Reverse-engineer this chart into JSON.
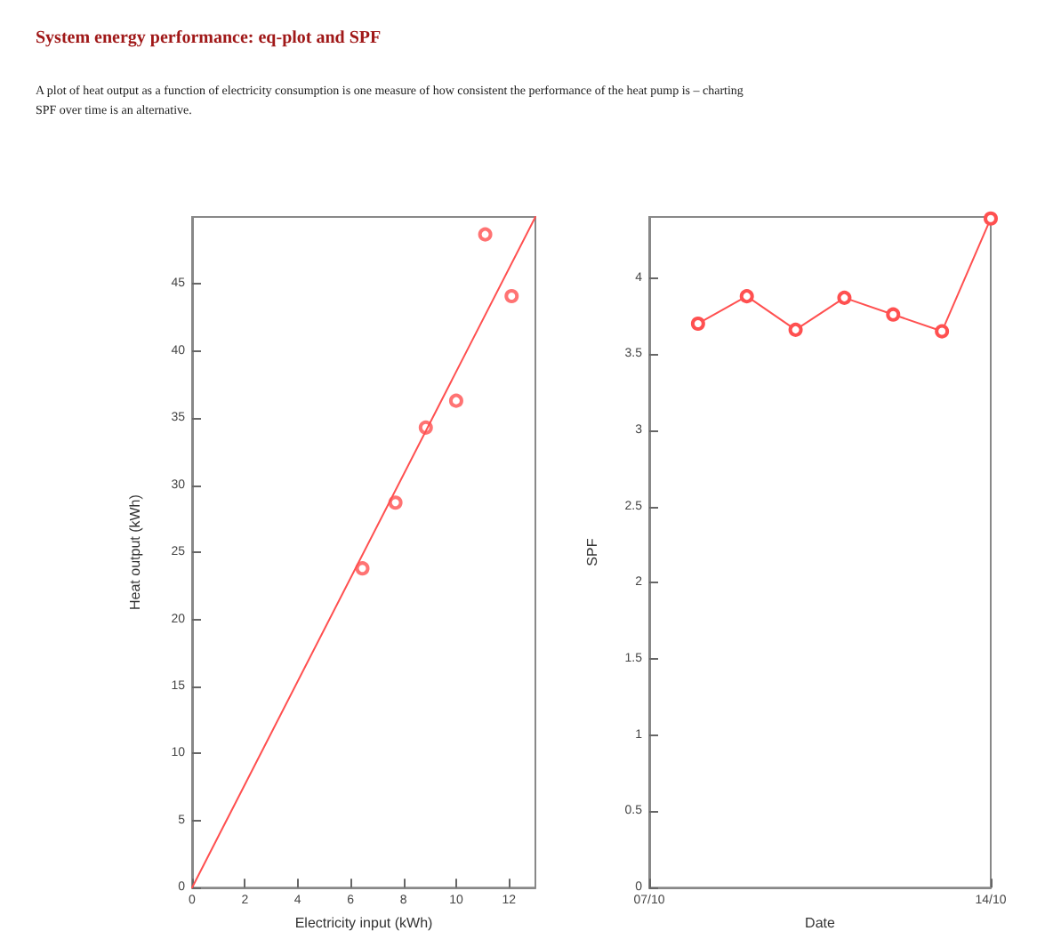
{
  "chart_data": [
    {
      "type": "scatter",
      "title": "System energy performance: eq-plot and SPF",
      "subtitle": "A plot of heat output as a function of electricity consumption is one measure of how consistent the performance of the heat pump is – charting SPF over time is an alternative.",
      "xlabel": "Electricity input (kWh)",
      "ylabel": "Heat output (kWh)",
      "xlim": [
        0,
        13
      ],
      "ylim": [
        0,
        50
      ],
      "xticks": [
        0,
        2,
        4,
        6,
        8,
        10,
        12
      ],
      "yticks": [
        0,
        5,
        10,
        15,
        20,
        25,
        30,
        35,
        40,
        45
      ],
      "grid": false,
      "series": [
        {
          "type": "scatter",
          "marker": "circle",
          "color": "#ff5050",
          "x": [
            6.45,
            7.7,
            8.85,
            10,
            11.1,
            12.1
          ],
          "values": [
            23.8,
            28.7,
            34.3,
            36.3,
            48.7,
            44.1
          ]
        },
        {
          "type": "line",
          "marker": "none",
          "color": "#ff5050",
          "x": [
            0,
            13
          ],
          "values": [
            0,
            50
          ]
        }
      ]
    },
    {
      "type": "line",
      "xlabel": "Date",
      "ylabel": "SPF",
      "xlim": [
        "--10-07",
        "--10-14"
      ],
      "ylim": [
        0,
        4.4
      ],
      "xticks": [
        {
          "value": "--10-07",
          "label": "07/10"
        },
        {
          "value": "--10-14",
          "label": "14/10"
        }
      ],
      "yticks": [
        0,
        0.5,
        1,
        1.5,
        2,
        2.5,
        3,
        3.5,
        4
      ],
      "grid": false,
      "marker": "circle",
      "series": [
        {
          "color": "#ff5050",
          "x": [
            "--10-08",
            "--10-09",
            "--10-10",
            "--10-11",
            "--10-12",
            "--10-13",
            "--10-14"
          ],
          "values": [
            3.7,
            3.88,
            3.66,
            3.87,
            3.76,
            3.65,
            4.39
          ]
        }
      ]
    }
  ]
}
